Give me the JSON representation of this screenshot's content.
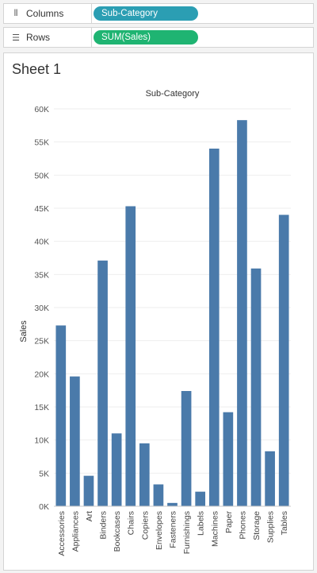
{
  "shelves": {
    "columns": {
      "label": "Columns",
      "icon": "columns-icon",
      "pill": "Sub-Category",
      "pill_color": "#2b9eb3"
    },
    "rows": {
      "label": "Rows",
      "icon": "rows-icon",
      "pill": "SUM(Sales)",
      "pill_color": "#1fb472"
    }
  },
  "sheet": {
    "title": "Sheet 1"
  },
  "chart_data": {
    "type": "bar",
    "title": "Sub-Category",
    "xlabel": "",
    "ylabel": "Sales",
    "ylim": [
      0,
      60000
    ],
    "yticks": [
      0,
      5000,
      10000,
      15000,
      20000,
      25000,
      30000,
      35000,
      40000,
      45000,
      50000,
      55000,
      60000
    ],
    "ytick_labels": [
      "0K",
      "5K",
      "10K",
      "15K",
      "20K",
      "25K",
      "30K",
      "35K",
      "40K",
      "45K",
      "50K",
      "55K",
      "60K"
    ],
    "grid": true,
    "bar_color": "#4a7aaa",
    "categories": [
      "Accessories",
      "Appliances",
      "Art",
      "Binders",
      "Bookcases",
      "Chairs",
      "Copiers",
      "Envelopes",
      "Fasteners",
      "Furnishings",
      "Labels",
      "Machines",
      "Paper",
      "Phones",
      "Storage",
      "Supplies",
      "Tables"
    ],
    "values": [
      27300,
      19600,
      4600,
      37100,
      11000,
      45300,
      9500,
      3300,
      500,
      17400,
      2200,
      54000,
      14200,
      58300,
      35900,
      8300,
      44000
    ]
  }
}
